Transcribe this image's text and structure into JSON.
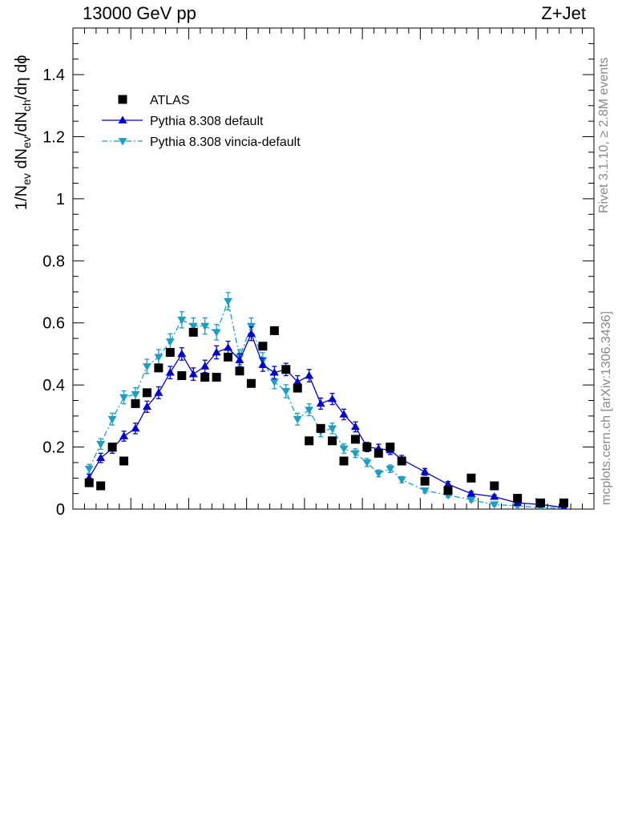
{
  "header": {
    "left": "13000 GeV pp",
    "right": "Z+Jet"
  },
  "side_labels": {
    "rivet": "Rivet 3.1.10, ≥ 2.8M events",
    "source": "mcplots.cern.ch [arXiv:1306.3436]"
  },
  "chart_data": {
    "type": "scatter",
    "ylabel_parts": [
      "1/N",
      "ev",
      " dN",
      "ev",
      "/dN",
      "ch",
      "/dη dϕ"
    ],
    "ylim": [
      0,
      1.55
    ],
    "xlim": [
      0,
      22.5
    ],
    "yticks": [
      0,
      0.2,
      0.4,
      0.6,
      0.8,
      1,
      1.2,
      1.4
    ],
    "ytick_labels": [
      "0",
      "0.2",
      "0.4",
      "0.6",
      "0.8",
      "1",
      "1.2",
      "1.4"
    ],
    "legend_position": "top-left",
    "series": [
      {
        "name": "ATLAS",
        "color": "#000000",
        "marker": "square",
        "x": [
          0.7,
          1.2,
          1.7,
          2.2,
          2.7,
          3.2,
          3.7,
          4.2,
          4.7,
          5.2,
          5.7,
          6.2,
          6.7,
          7.2,
          7.7,
          8.2,
          8.7,
          9.2,
          9.7,
          10.2,
          10.7,
          11.2,
          11.7,
          12.2,
          12.7,
          13.2,
          13.7,
          14.2,
          15.2,
          16.2,
          17.2,
          18.2,
          19.2,
          20.2,
          21.2
        ],
        "y": [
          0.085,
          0.075,
          0.2,
          0.155,
          0.34,
          0.375,
          0.455,
          0.505,
          0.43,
          0.57,
          0.425,
          0.425,
          0.49,
          0.445,
          0.405,
          0.525,
          0.575,
          0.45,
          0.39,
          0.22,
          0.26,
          0.22,
          0.155,
          0.225,
          0.2,
          0.18,
          0.2,
          0.155,
          0.09,
          0.06,
          0.1,
          0.075,
          0.035,
          0.02,
          0.02
        ]
      },
      {
        "name": "Pythia 8.308 default",
        "color": "#0000d0",
        "marker": "triangle-up",
        "line": "solid",
        "x": [
          0.7,
          1.2,
          1.7,
          2.2,
          2.7,
          3.2,
          3.7,
          4.2,
          4.7,
          5.2,
          5.7,
          6.2,
          6.7,
          7.2,
          7.7,
          8.2,
          8.7,
          9.2,
          9.7,
          10.2,
          10.7,
          11.2,
          11.7,
          12.2,
          12.7,
          13.2,
          13.7,
          14.2,
          15.2,
          16.2,
          17.2,
          18.2,
          19.2,
          20.2,
          21.2
        ],
        "y": [
          0.1,
          0.165,
          0.195,
          0.235,
          0.26,
          0.33,
          0.375,
          0.44,
          0.5,
          0.435,
          0.46,
          0.505,
          0.52,
          0.48,
          0.565,
          0.465,
          0.44,
          0.45,
          0.41,
          0.43,
          0.34,
          0.355,
          0.305,
          0.265,
          0.2,
          0.195,
          0.19,
          0.16,
          0.12,
          0.08,
          0.05,
          0.04,
          0.02,
          0.015,
          0.005
        ],
        "yerr": [
          0.012,
          0.015,
          0.015,
          0.016,
          0.017,
          0.018,
          0.019,
          0.02,
          0.02,
          0.02,
          0.02,
          0.021,
          0.021,
          0.021,
          0.022,
          0.021,
          0.02,
          0.02,
          0.02,
          0.02,
          0.018,
          0.018,
          0.017,
          0.016,
          0.015,
          0.014,
          0.014,
          0.013,
          0.011,
          0.009,
          0.007,
          0.006,
          0.004,
          0.003,
          0.002
        ]
      },
      {
        "name": "Pythia 8.308 vincia-default",
        "color": "#1a9ec4",
        "marker": "triangle-down",
        "line": "dash-dot",
        "x": [
          0.7,
          1.2,
          1.7,
          2.2,
          2.7,
          3.2,
          3.7,
          4.2,
          4.7,
          5.2,
          5.7,
          6.2,
          6.7,
          7.2,
          7.7,
          8.2,
          8.7,
          9.2,
          9.7,
          10.2,
          10.7,
          11.2,
          11.7,
          12.2,
          12.7,
          13.2,
          13.7,
          14.2,
          15.2,
          16.2,
          17.2,
          18.2,
          19.2,
          20.2,
          21.2
        ],
        "y": [
          0.13,
          0.21,
          0.29,
          0.36,
          0.37,
          0.46,
          0.49,
          0.54,
          0.61,
          0.59,
          0.59,
          0.57,
          0.67,
          0.49,
          0.59,
          0.48,
          0.41,
          0.38,
          0.29,
          0.32,
          0.25,
          0.26,
          0.195,
          0.18,
          0.15,
          0.115,
          0.13,
          0.095,
          0.06,
          0.045,
          0.03,
          0.015,
          0.01,
          0.005,
          0.003
        ],
        "yerr": [
          0.014,
          0.017,
          0.019,
          0.021,
          0.021,
          0.023,
          0.024,
          0.025,
          0.026,
          0.026,
          0.026,
          0.025,
          0.028,
          0.024,
          0.026,
          0.024,
          0.022,
          0.021,
          0.019,
          0.019,
          0.017,
          0.017,
          0.015,
          0.014,
          0.013,
          0.011,
          0.012,
          0.01,
          0.008,
          0.007,
          0.006,
          0.004,
          0.003,
          0.002,
          0.002
        ]
      }
    ]
  }
}
